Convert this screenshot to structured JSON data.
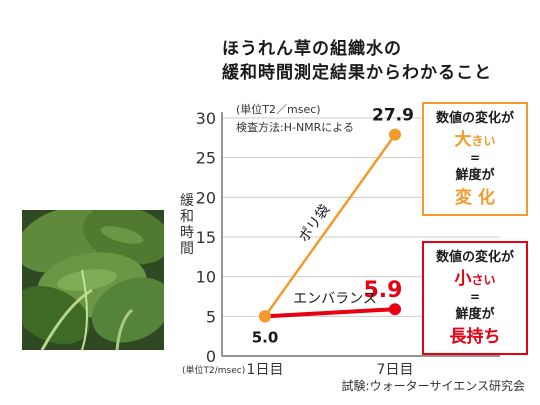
{
  "chart_data": {
    "type": "line",
    "title_lines": [
      "ほうれん草の組織水の",
      "緩和時間測定結果からわかること"
    ],
    "ylabel": "緩和時間",
    "unit_note": "(単位T2／msec)",
    "axis_unit": "(単位T2/msec)",
    "method_note": "検査方法:H-NMRによる",
    "source": "試験:ウォーターサイエンス研究会",
    "categories": [
      "1日目",
      "7日目"
    ],
    "ylim": [
      0,
      30
    ],
    "y_ticks": [
      0,
      5,
      10,
      15,
      20,
      25,
      30
    ],
    "grid": true,
    "series": [
      {
        "name": "ポリ袋",
        "color": "#f39a2c",
        "values": [
          5.0,
          27.9
        ],
        "end_label": "27.9",
        "box_lines": [
          {
            "text": "数値の変化が",
            "style": "normal"
          },
          {
            "text": "大",
            "suffix": "きい",
            "style": "accent"
          },
          {
            "text": "=",
            "style": "normal"
          },
          {
            "text": "鮮度が",
            "style": "normal"
          },
          {
            "text": "変 化",
            "style": "accent"
          }
        ]
      },
      {
        "name": "エンバランス",
        "color": "#e60012",
        "values": [
          5.0,
          5.9
        ],
        "end_label": "5.9",
        "box_lines": [
          {
            "text": "数値の変化が",
            "style": "normal"
          },
          {
            "text": "小",
            "suffix": "さい",
            "style": "accent"
          },
          {
            "text": "=",
            "style": "normal"
          },
          {
            "text": "鮮度が",
            "style": "normal"
          },
          {
            "text": "長持ち",
            "style": "accent"
          }
        ]
      }
    ],
    "start_label": "5.0"
  },
  "colors": {
    "axis": "#555555",
    "grid": "#cccccc",
    "text": "#222222"
  },
  "photo": {
    "icon": "spinach-leaves-photo"
  }
}
